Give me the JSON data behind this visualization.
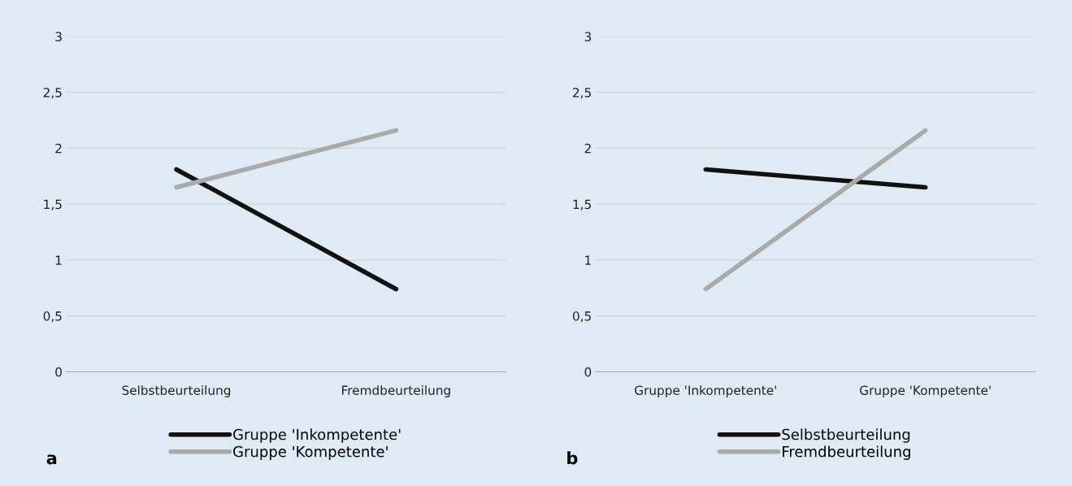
{
  "chart_data": [
    {
      "type": "line",
      "categories": [
        "Selbstbeurteilung",
        "Fremdbeurteilung"
      ],
      "series": [
        {
          "name": "Gruppe 'Inkompetente'",
          "color": "#111111",
          "values": [
            1.81,
            0.74
          ]
        },
        {
          "name": "Gruppe 'Kompetente'",
          "color": "#aaaaaa",
          "values": [
            1.65,
            2.16
          ]
        }
      ],
      "ylim": [
        0,
        3
      ],
      "yticks": [
        0,
        {
          "value": 0.5,
          "label": "0,5"
        },
        1,
        {
          "value": 1.5,
          "label": "1,5"
        },
        2,
        {
          "value": 2.5,
          "label": "2,5"
        },
        3
      ],
      "grid": "y",
      "legend": "bottom",
      "marker": "none",
      "line_style": "solid",
      "annotations": [
        "a"
      ]
    },
    {
      "type": "line",
      "categories": [
        "Gruppe 'Inkompetente'",
        "Gruppe 'Kompetente'"
      ],
      "series": [
        {
          "name": "Selbstbeurteilung",
          "color": "#111111",
          "values": [
            1.81,
            1.65
          ]
        },
        {
          "name": "Fremdbeurteilung",
          "color": "#aaaaaa",
          "values": [
            0.74,
            2.16
          ]
        }
      ],
      "ylim": [
        0,
        3
      ],
      "yticks": [
        0,
        {
          "value": 0.5,
          "label": "0,5"
        },
        1,
        {
          "value": 1.5,
          "label": "1,5"
        },
        2,
        {
          "value": 2.5,
          "label": "2,5"
        },
        3
      ],
      "grid": "y",
      "legend": "bottom",
      "marker": "none",
      "line_style": "solid",
      "annotations": [
        "b"
      ]
    }
  ]
}
